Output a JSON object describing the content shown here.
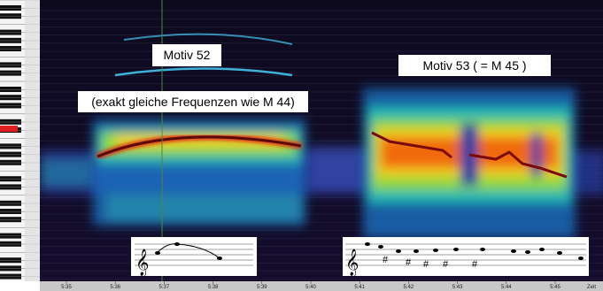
{
  "annotations": {
    "motiv_52": "Motiv 52",
    "motiv_52_note": "(exakt gleiche Frequenzen wie M 44)",
    "motiv_53": "Motiv 53  ( = M 45 )"
  },
  "time_axis": {
    "labels": [
      "5:35",
      "5:36",
      "5:37",
      "5:38",
      "5:39",
      "5:40",
      "5:41",
      "5:42",
      "5:43",
      "5:44",
      "5:45"
    ],
    "unit": "Zeit"
  }
}
